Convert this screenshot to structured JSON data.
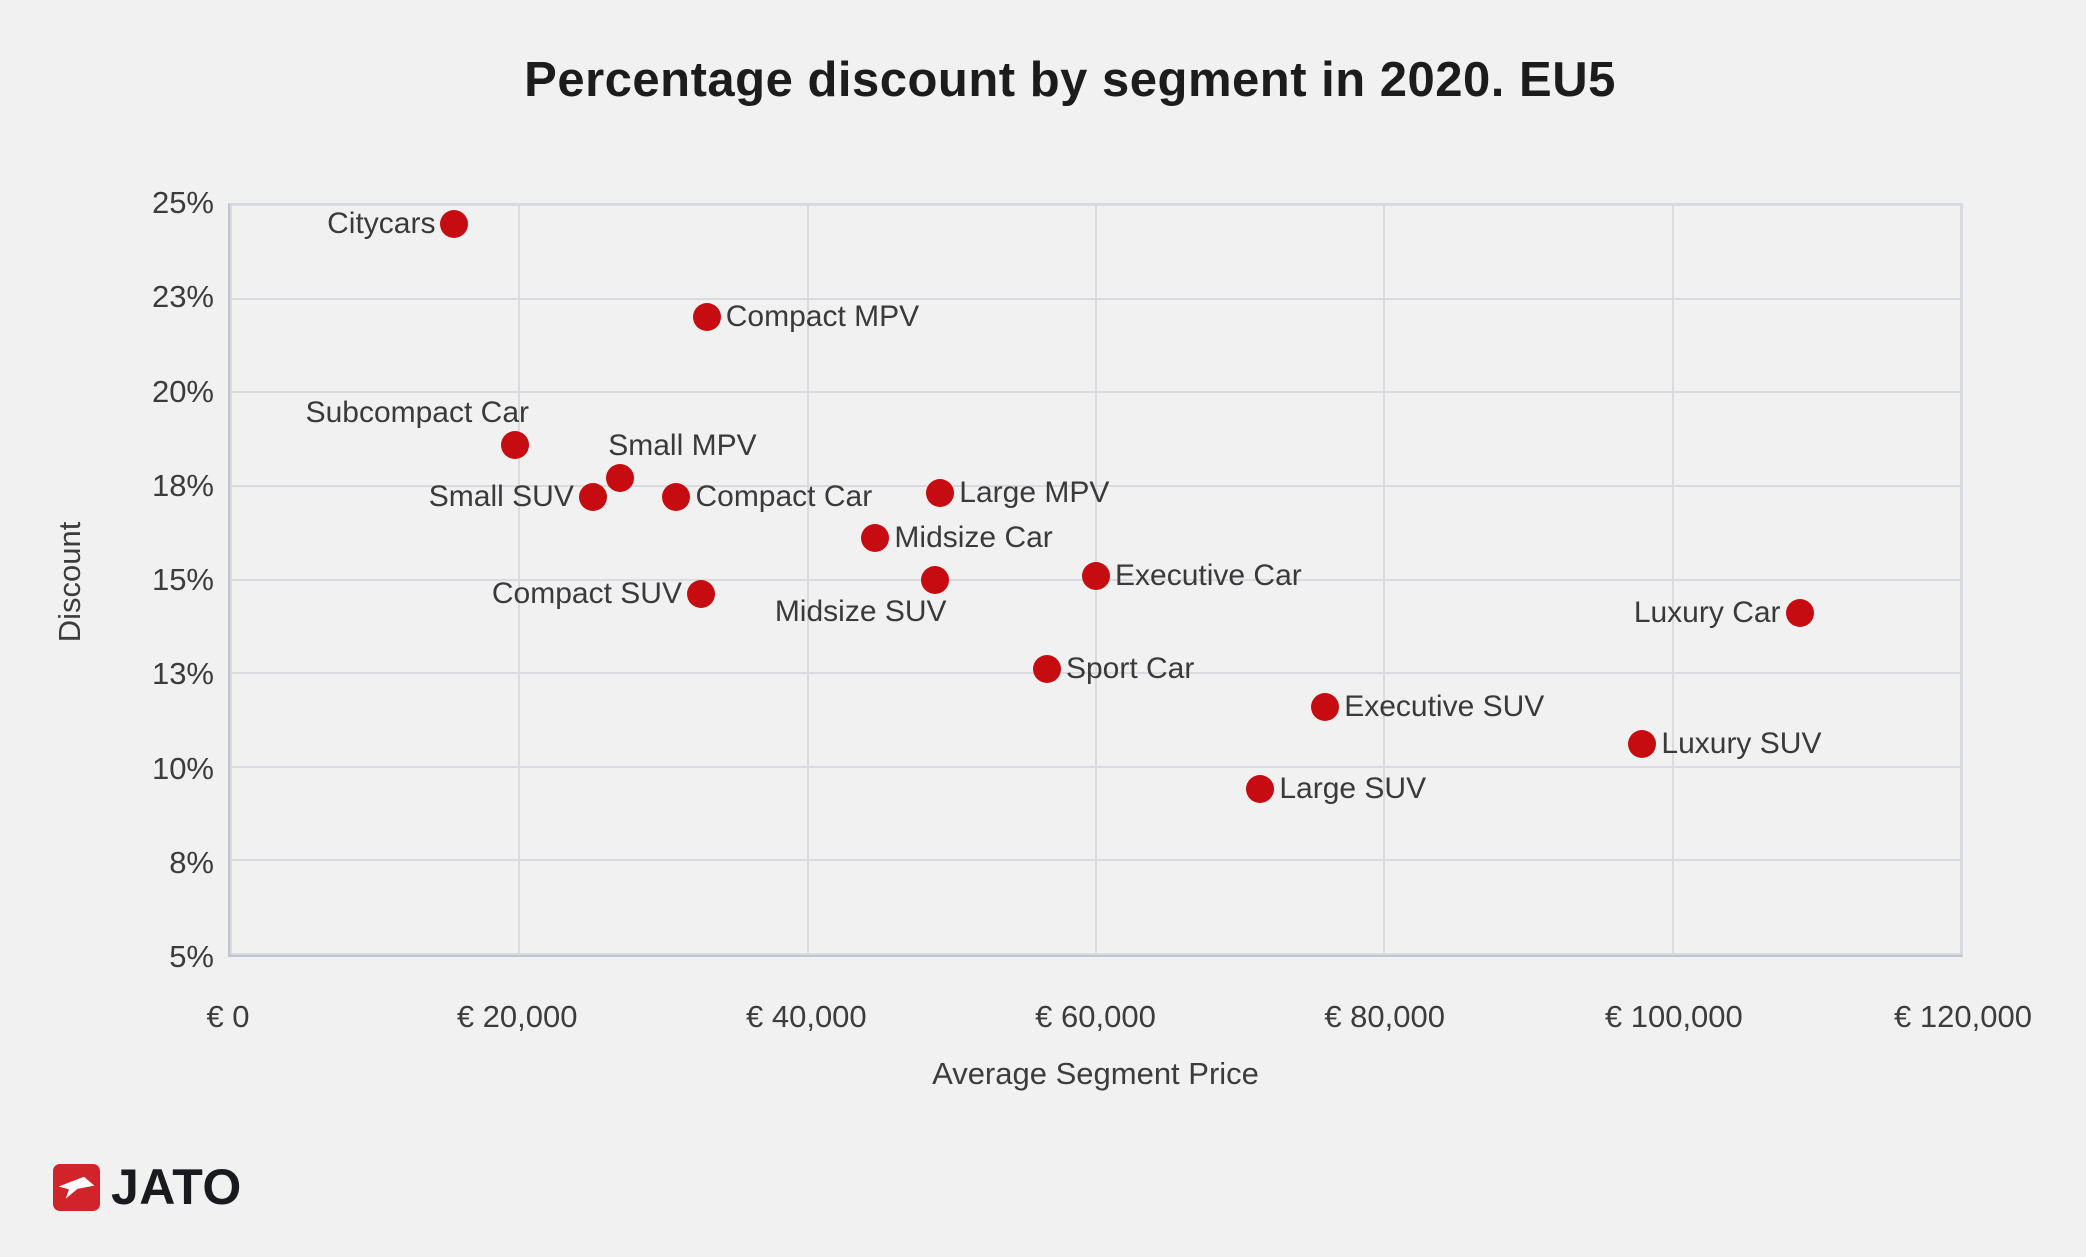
{
  "page": {
    "background": "#f1f1f2"
  },
  "chart_data": {
    "type": "scatter",
    "title": "Percentage discount by segment in 2020. EU5",
    "xlabel": "Average Segment Price",
    "ylabel": "Discount",
    "xlim": [
      0,
      120000
    ],
    "ylim": [
      5,
      25
    ],
    "grid": true,
    "legend": "none",
    "point_color": "#c60c10",
    "x_ticks": [
      {
        "value": 0,
        "label": "€ 0"
      },
      {
        "value": 20000,
        "label": "€ 20,000"
      },
      {
        "value": 40000,
        "label": "€ 40,000"
      },
      {
        "value": 60000,
        "label": "€ 60,000"
      },
      {
        "value": 80000,
        "label": "€ 80,000"
      },
      {
        "value": 100000,
        "label": "€ 100,000"
      },
      {
        "value": 120000,
        "label": "€ 120,000"
      }
    ],
    "y_ticks": [
      {
        "value": 25,
        "label": "25%"
      },
      {
        "value": 22.5,
        "label": "23%"
      },
      {
        "value": 20,
        "label": "20%"
      },
      {
        "value": 17.5,
        "label": "18%"
      },
      {
        "value": 15,
        "label": "15%"
      },
      {
        "value": 12.5,
        "label": "13%"
      },
      {
        "value": 10,
        "label": "10%"
      },
      {
        "value": 7.5,
        "label": "8%"
      },
      {
        "value": 5,
        "label": "5%"
      }
    ],
    "points": [
      {
        "label": "Citycars",
        "price": 15500,
        "discount": 24.5,
        "label_side": "left"
      },
      {
        "label": "Compact MPV",
        "price": 33000,
        "discount": 22.0,
        "label_side": "right"
      },
      {
        "label": "Subcompact Car",
        "price": 19700,
        "discount": 18.6,
        "label_side": "above-left"
      },
      {
        "label": "Small MPV",
        "price": 27000,
        "discount": 17.7,
        "label_side": "above-right"
      },
      {
        "label": "Small SUV",
        "price": 25100,
        "discount": 17.2,
        "label_side": "left"
      },
      {
        "label": "Compact Car",
        "price": 30900,
        "discount": 17.2,
        "label_side": "right"
      },
      {
        "label": "Large MPV",
        "price": 49200,
        "discount": 17.3,
        "label_side": "right"
      },
      {
        "label": "Midsize Car",
        "price": 44700,
        "discount": 16.1,
        "label_side": "right"
      },
      {
        "label": "Compact SUV",
        "price": 32600,
        "discount": 14.6,
        "label_side": "left"
      },
      {
        "label": "Midsize SUV",
        "price": 48800,
        "discount": 15.0,
        "label_side": "below-left"
      },
      {
        "label": "Executive Car",
        "price": 60000,
        "discount": 15.1,
        "label_side": "right"
      },
      {
        "label": "Sport Car",
        "price": 56600,
        "discount": 12.6,
        "label_side": "right"
      },
      {
        "label": "Executive SUV",
        "price": 75900,
        "discount": 11.6,
        "label_side": "right"
      },
      {
        "label": "Large SUV",
        "price": 71400,
        "discount": 9.4,
        "label_side": "right"
      },
      {
        "label": "Luxury Car",
        "price": 108800,
        "discount": 14.1,
        "label_side": "left"
      },
      {
        "label": "Luxury SUV",
        "price": 97900,
        "discount": 10.6,
        "label_side": "right"
      }
    ]
  },
  "logo": {
    "text": "JATO",
    "mark_color": "#d2232a",
    "arrow_icon": "jato-arrow"
  }
}
